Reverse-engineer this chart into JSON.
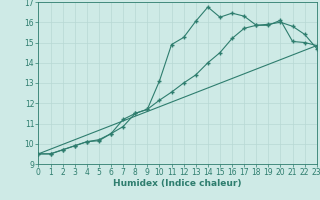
{
  "title": "",
  "xlabel": "Humidex (Indice chaleur)",
  "ylabel": "",
  "background_color": "#ceeae6",
  "grid_color": "#b8d8d4",
  "line_color": "#2e7d6e",
  "xlim": [
    0,
    23
  ],
  "ylim": [
    9,
    17
  ],
  "xticks": [
    0,
    1,
    2,
    3,
    4,
    5,
    6,
    7,
    8,
    9,
    10,
    11,
    12,
    13,
    14,
    15,
    16,
    17,
    18,
    19,
    20,
    21,
    22,
    23
  ],
  "yticks": [
    9,
    10,
    11,
    12,
    13,
    14,
    15,
    16,
    17
  ],
  "line1_x": [
    0,
    1,
    2,
    3,
    4,
    5,
    6,
    7,
    8,
    9,
    10,
    11,
    12,
    13,
    14,
    15,
    16,
    17,
    18,
    19,
    20,
    21,
    22,
    23
  ],
  "line1_y": [
    9.5,
    9.5,
    9.7,
    9.9,
    10.1,
    10.2,
    10.5,
    11.2,
    11.5,
    11.7,
    13.1,
    14.9,
    15.25,
    16.05,
    16.75,
    16.25,
    16.45,
    16.3,
    15.85,
    15.85,
    16.1,
    15.05,
    15.0,
    14.85
  ],
  "line2_x": [
    0,
    1,
    2,
    3,
    4,
    5,
    6,
    7,
    8,
    9,
    10,
    11,
    12,
    13,
    14,
    15,
    16,
    17,
    18,
    19,
    20,
    21,
    22,
    23
  ],
  "line2_y": [
    9.5,
    9.5,
    9.7,
    9.9,
    10.1,
    10.15,
    10.5,
    10.85,
    11.5,
    11.7,
    12.15,
    12.55,
    13.0,
    13.4,
    14.0,
    14.5,
    15.2,
    15.7,
    15.85,
    15.9,
    16.0,
    15.8,
    15.4,
    14.7
  ],
  "line3_x": [
    0,
    23
  ],
  "line3_y": [
    9.5,
    14.85
  ],
  "marker_style": "+",
  "marker_size": 3,
  "linewidth": 0.8,
  "tick_fontsize": 5.5
}
